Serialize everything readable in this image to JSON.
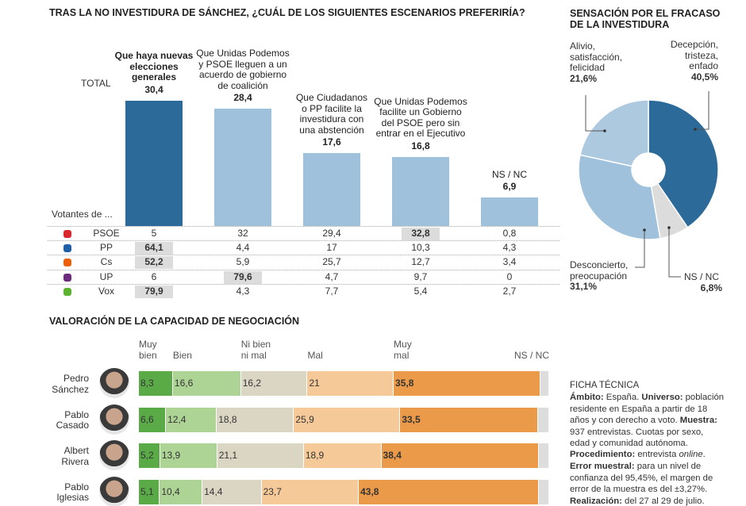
{
  "chart_data": [
    {
      "type": "bar",
      "title": "TRAS LA NO INVESTIDURA DE SÁNCHEZ, ¿CUÁL DE LOS SIGUIENTES ESCENARIOS PREFERIRÍA?",
      "total_label": "TOTAL",
      "categories": [
        "Que haya nuevas\nelecciones\ngenerales",
        "Que Unidas Podemos\ny PSOE lleguen a un\nacuerdo de gobierno\nde coalición",
        "Que Ciudadanos\no PP facilite la\ninvestidura con\nuna abstención",
        "Que Unidas Podemos\nfacilite un Gobierno\ndel PSOE pero sin\nentrar en el Ejecutivo",
        "NS / NC"
      ],
      "values": [
        30.4,
        28.4,
        17.6,
        16.8,
        6.9
      ],
      "value_labels": [
        "30,4",
        "28,4",
        "17,6",
        "16,8",
        "6,9"
      ],
      "colors": [
        "#2c6a99",
        "#9fc1dc",
        "#9fc1dc",
        "#9fc1dc",
        "#9fc1dc"
      ],
      "highlight_category": 0,
      "table": {
        "title": "Votantes de ...",
        "rows": [
          {
            "name": "PSOE",
            "cells": [
              "5",
              "32",
              "29,4",
              "32,8",
              "0,8"
            ],
            "highlight": 3
          },
          {
            "name": "PP",
            "cells": [
              "64,1",
              "4,4",
              "17",
              "10,3",
              "4,3"
            ],
            "highlight": 0
          },
          {
            "name": "Cs",
            "cells": [
              "52,2",
              "5,9",
              "25,7",
              "12,7",
              "3,4"
            ],
            "highlight": 0
          },
          {
            "name": "UP",
            "cells": [
              "6",
              "79,6",
              "4,7",
              "9,7",
              "0"
            ],
            "highlight": 1
          },
          {
            "name": "Vox",
            "cells": [
              "79,9",
              "4,3",
              "7,7",
              "5,4",
              "2,7"
            ],
            "highlight": 0
          }
        ]
      }
    },
    {
      "type": "pie",
      "title": "SENSACIÓN POR EL FRACASO\nDE LA INVESTIDURA",
      "donut": true,
      "categories": [
        "Decepción,\ntristeza,\nenfado",
        "NS / NC",
        "Desconcierto,\npreocupación",
        "Alivio,\nsatisfacción,\nfelicidad"
      ],
      "values": [
        40.5,
        6.8,
        31.1,
        21.6
      ],
      "value_labels": [
        "40,5%",
        "6,8%",
        "31,1%",
        "21,6%"
      ],
      "colors": [
        "#2c6a99",
        "#dcdcdc",
        "#9fc1dc",
        "#adc9e0"
      ]
    },
    {
      "type": "stacked_bar",
      "orientation": "horizontal",
      "title": "VALORACIÓN DE LA CAPACIDAD DE NEGOCIACIÓN",
      "categories": [
        "Pedro\nSánchez",
        "Pablo\nCasado",
        "Albert\nRivera",
        "Pablo\nIglesias"
      ],
      "series": [
        {
          "name": "Muy\nbien",
          "color": "#5aab48",
          "values": [
            8.3,
            6.6,
            5.2,
            5.1
          ],
          "value_labels": [
            "8,3",
            "6,6",
            "5,2",
            "5,1"
          ]
        },
        {
          "name": "Bien",
          "color": "#aed495",
          "values": [
            16.6,
            12.4,
            13.9,
            10.4
          ],
          "value_labels": [
            "16,6",
            "12,4",
            "13,9",
            "10,4"
          ]
        },
        {
          "name": "Ni bien\nni mal",
          "color": "#dbd5c3",
          "values": [
            16.2,
            18.8,
            21.1,
            14.4
          ],
          "value_labels": [
            "16,2",
            "18,8",
            "21,1",
            "14,4"
          ]
        },
        {
          "name": "Mal",
          "color": "#f6c999",
          "values": [
            21,
            25.9,
            18.9,
            23.7
          ],
          "value_labels": [
            "21",
            "25,9",
            "18,9",
            "23,7"
          ]
        },
        {
          "name": "Muy\nmal",
          "color": "#ea9a48",
          "values": [
            35.8,
            33.5,
            38.4,
            43.8
          ],
          "value_labels": [
            "35,8",
            "33,5",
            "38,4",
            "43,8"
          ],
          "bold": true
        },
        {
          "name": "NS / NC",
          "color": "#dddddd",
          "values": [
            2.1,
            2.8,
            2.5,
            2.6
          ],
          "value_labels": [
            null,
            null,
            null,
            null
          ]
        }
      ]
    }
  ],
  "ficha": {
    "title": "FICHA TÉCNICA",
    "paragraphs": [
      [
        {
          "text": "Ámbito:",
          "style": "bold"
        },
        {
          "text": " España. "
        },
        {
          "text": "Universo:",
          "style": "bold"
        },
        {
          "text": " población residente en España a partir de 18 años y con derecho a voto. "
        },
        {
          "text": "Muestra:",
          "style": "bold"
        },
        {
          "text": " 937 entrevistas. Cuotas por sexo, edad y comunidad autónoma."
        }
      ],
      [
        {
          "text": "Procedimiento:",
          "style": "bold"
        },
        {
          "text": " entrevista "
        },
        {
          "text": "online",
          "style": "italic"
        },
        {
          "text": "."
        }
      ],
      [
        {
          "text": "Error muestral:",
          "style": "bold"
        },
        {
          "text": " para un nivel de confianza del 95,45%, el margen de error de la muestra es del ±3,27%."
        }
      ],
      [
        {
          "text": "Realización:",
          "style": "bold"
        },
        {
          "text": " del 27 al 29 de julio."
        }
      ]
    ]
  }
}
